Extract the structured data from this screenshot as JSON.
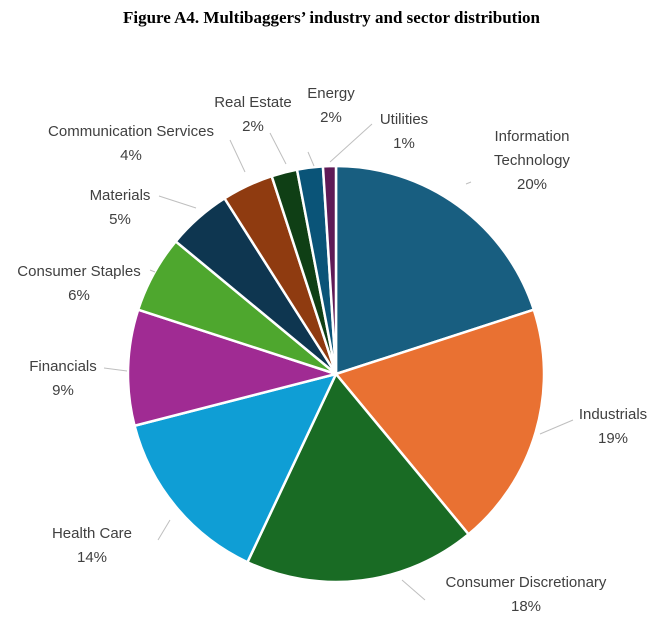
{
  "chart_data": {
    "type": "pie",
    "title": "Figure A4. Multibaggers’ industry and sector distribution",
    "slices": [
      {
        "name": "Information Technology",
        "label_lines": [
          "Information",
          "Technology"
        ],
        "value": 20,
        "value_label": "20%",
        "color": "#185e80"
      },
      {
        "name": "Industrials",
        "label_lines": [
          "Industrials"
        ],
        "value": 19,
        "value_label": "19%",
        "color": "#e97132"
      },
      {
        "name": "Consumer Discretionary",
        "label_lines": [
          "Consumer Discretionary"
        ],
        "value": 18,
        "value_label": "18%",
        "color": "#196b24"
      },
      {
        "name": "Health Care",
        "label_lines": [
          "Health Care"
        ],
        "value": 14,
        "value_label": "14%",
        "color": "#0f9ed5"
      },
      {
        "name": "Financials",
        "label_lines": [
          "Financials"
        ],
        "value": 9,
        "value_label": "9%",
        "color": "#a02b93"
      },
      {
        "name": "Consumer Staples",
        "label_lines": [
          "Consumer Staples"
        ],
        "value": 6,
        "value_label": "6%",
        "color": "#4ea72e"
      },
      {
        "name": "Materials",
        "label_lines": [
          "Materials"
        ],
        "value": 5,
        "value_label": "5%",
        "color": "#0e3650"
      },
      {
        "name": "Communication Services",
        "label_lines": [
          "Communication Services"
        ],
        "value": 4,
        "value_label": "4%",
        "color": "#8f3b10"
      },
      {
        "name": "Real Estate",
        "label_lines": [
          "Real Estate"
        ],
        "value": 2,
        "value_label": "2%",
        "color": "#0f3f15"
      },
      {
        "name": "Energy",
        "label_lines": [
          "Energy"
        ],
        "value": 2,
        "value_label": "2%",
        "color": "#0a5478"
      },
      {
        "name": "Utilities",
        "label_lines": [
          "Utilities"
        ],
        "value": 1,
        "value_label": "1%",
        "color": "#5f1a56"
      }
    ]
  }
}
